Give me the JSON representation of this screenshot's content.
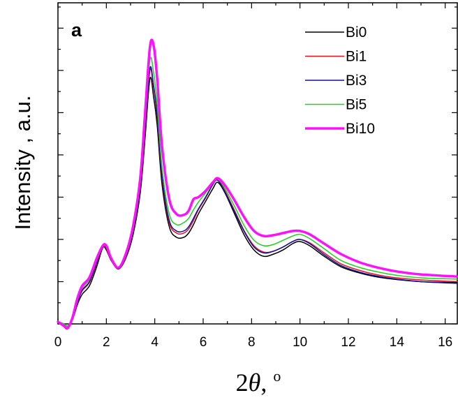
{
  "chart_data": {
    "type": "line",
    "panel_label": "a",
    "xlabel_parts": [
      "2",
      "θ",
      ", ",
      "o"
    ],
    "ylabel": "Intensity , a.u.",
    "xlim": [
      0,
      16.5
    ],
    "ylim": [
      0,
      7.6
    ],
    "x_ticks": [
      0,
      2,
      4,
      6,
      8,
      10,
      12,
      14,
      16
    ],
    "x_tick_labels": [
      "0",
      "2",
      "4",
      "6",
      "8",
      "10",
      "12",
      "14",
      "16"
    ],
    "y_tick_labels_shown": false,
    "grid": false,
    "legend_position": "top-right",
    "x": [
      0.0,
      0.25,
      0.4,
      0.6,
      0.8,
      1.0,
      1.3,
      1.6,
      1.85,
      2.0,
      2.2,
      2.5,
      2.8,
      3.1,
      3.4,
      3.6,
      3.8,
      3.95,
      4.1,
      4.3,
      4.6,
      4.9,
      5.2,
      5.4,
      5.6,
      5.8,
      6.1,
      6.4,
      6.6,
      6.9,
      7.3,
      7.7,
      8.1,
      8.5,
      8.9,
      9.3,
      9.7,
      10.0,
      10.4,
      11.0,
      11.7,
      12.5,
      13.3,
      14.0,
      15.0,
      16.5
    ],
    "series": [
      {
        "name": "Bi0",
        "color": "#000000",
        "width": 1.5,
        "values": [
          0.05,
          0.0,
          -0.05,
          0.1,
          0.45,
          0.7,
          0.9,
          1.35,
          1.8,
          1.75,
          1.5,
          1.3,
          1.55,
          2.1,
          3.1,
          4.4,
          5.8,
          5.38,
          4.7,
          3.3,
          2.3,
          2.05,
          2.05,
          2.15,
          2.35,
          2.6,
          2.9,
          3.2,
          3.35,
          3.1,
          2.6,
          2.1,
          1.75,
          1.6,
          1.65,
          1.75,
          1.9,
          1.95,
          1.85,
          1.6,
          1.35,
          1.2,
          1.1,
          1.05,
          1.0,
          0.98
        ]
      },
      {
        "name": "Bi1",
        "color": "#e8101a",
        "width": 1.5,
        "values": [
          0.05,
          0.0,
          -0.05,
          0.12,
          0.5,
          0.78,
          0.98,
          1.42,
          1.85,
          1.78,
          1.52,
          1.32,
          1.6,
          2.2,
          3.25,
          4.6,
          6.0,
          5.6,
          4.9,
          3.45,
          2.4,
          2.15,
          2.15,
          2.25,
          2.45,
          2.7,
          2.98,
          3.3,
          3.45,
          3.15,
          2.68,
          2.2,
          1.85,
          1.7,
          1.72,
          1.82,
          1.95,
          2.0,
          1.92,
          1.68,
          1.42,
          1.26,
          1.15,
          1.09,
          1.04,
          1.0
        ]
      },
      {
        "name": "Bi3",
        "color": "#10109c",
        "width": 1.5,
        "values": [
          0.05,
          0.0,
          -0.05,
          0.12,
          0.5,
          0.8,
          1.0,
          1.45,
          1.85,
          1.8,
          1.52,
          1.32,
          1.6,
          2.2,
          3.25,
          4.65,
          6.05,
          5.65,
          4.95,
          3.5,
          2.45,
          2.2,
          2.2,
          2.3,
          2.5,
          2.72,
          3.0,
          3.3,
          3.4,
          3.12,
          2.65,
          2.18,
          1.82,
          1.68,
          1.72,
          1.82,
          1.95,
          2.0,
          1.9,
          1.64,
          1.38,
          1.22,
          1.12,
          1.06,
          1.0,
          0.96
        ]
      },
      {
        "name": "Bi5",
        "color": "#20d020",
        "width": 1.5,
        "values": [
          0.05,
          0.0,
          -0.05,
          0.15,
          0.55,
          0.85,
          1.05,
          1.5,
          1.85,
          1.82,
          1.55,
          1.33,
          1.62,
          2.25,
          3.35,
          4.8,
          6.25,
          5.95,
          5.2,
          3.7,
          2.6,
          2.35,
          2.4,
          2.5,
          2.7,
          2.88,
          3.1,
          3.33,
          3.45,
          3.2,
          2.78,
          2.32,
          1.98,
          1.85,
          1.88,
          1.98,
          2.08,
          2.12,
          2.02,
          1.78,
          1.5,
          1.33,
          1.22,
          1.15,
          1.09,
          1.06
        ]
      },
      {
        "name": "Bi10",
        "color": "#ff10ff",
        "width": 3.5,
        "values": [
          0.05,
          -0.05,
          -0.1,
          0.15,
          0.6,
          0.9,
          1.1,
          1.55,
          1.85,
          1.85,
          1.55,
          1.33,
          1.65,
          2.3,
          3.45,
          5.0,
          6.55,
          6.6,
          5.8,
          4.2,
          2.95,
          2.6,
          2.58,
          2.68,
          2.95,
          3.0,
          3.15,
          3.35,
          3.45,
          3.28,
          2.92,
          2.52,
          2.2,
          2.08,
          2.1,
          2.15,
          2.2,
          2.2,
          2.12,
          1.9,
          1.65,
          1.45,
          1.32,
          1.24,
          1.17,
          1.12
        ]
      }
    ]
  }
}
